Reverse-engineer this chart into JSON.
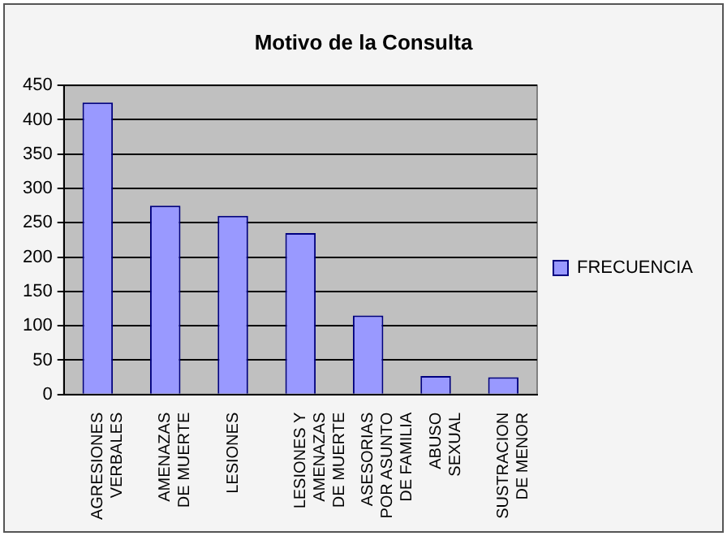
{
  "chart_data": {
    "type": "bar",
    "title": "Motivo de la Consulta",
    "categories": [
      "AGRESIONES VERBALES",
      "AMENAZAS DE MUERTE",
      "LESIONES",
      "LESIONES Y AMENAZAS DE MUERTE",
      "ASESORIAS POR ASUNTO DE FAMILIA",
      "ABUSO SEXUAL",
      "SUSTRACION DE MENOR"
    ],
    "series": [
      {
        "name": "FRECUENCIA",
        "color": "#9999ff",
        "values": [
          425,
          275,
          260,
          235,
          115,
          27,
          25
        ]
      }
    ],
    "ylim": [
      0,
      450
    ],
    "yticks": [
      0,
      50,
      100,
      150,
      200,
      250,
      300,
      350,
      400,
      450
    ],
    "grid": "y",
    "legend": "right"
  }
}
